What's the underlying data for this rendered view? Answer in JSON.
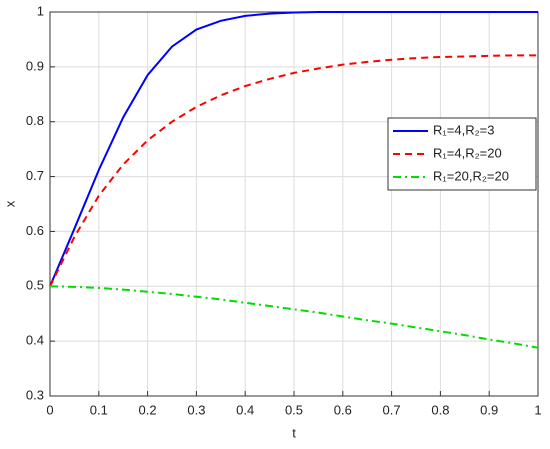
{
  "chart_data": {
    "type": "line",
    "xlabel": "t",
    "ylabel": "x",
    "x": [
      0,
      0.05,
      0.1,
      0.15,
      0.2,
      0.25,
      0.3,
      0.35,
      0.4,
      0.45,
      0.5,
      0.55,
      0.6,
      0.65,
      0.7,
      0.75,
      0.8,
      0.85,
      0.9,
      0.95,
      1
    ],
    "series": [
      {
        "name": "R₁=4,R₂=3",
        "color": "#0000ff",
        "style": "solid",
        "values": [
          0.5,
          0.605,
          0.712,
          0.808,
          0.885,
          0.937,
          0.968,
          0.984,
          0.993,
          0.997,
          0.999,
          1,
          1,
          1,
          1,
          1,
          1,
          1,
          1,
          1,
          1
        ]
      },
      {
        "name": "R₁=4,R₂=20",
        "color": "#ff0000",
        "style": "dashed",
        "values": [
          0.5,
          0.59,
          0.665,
          0.722,
          0.766,
          0.8,
          0.827,
          0.848,
          0.865,
          0.878,
          0.889,
          0.897,
          0.904,
          0.909,
          0.913,
          0.916,
          0.918,
          0.919,
          0.92,
          0.921,
          0.921
        ]
      },
      {
        "name": "R₁=20,R₂=20",
        "color": "#00dd00",
        "style": "dashdot",
        "values": [
          0.5,
          0.499,
          0.497,
          0.494,
          0.49,
          0.486,
          0.481,
          0.476,
          0.47,
          0.464,
          0.458,
          0.452,
          0.445,
          0.438,
          0.432,
          0.425,
          0.418,
          0.411,
          0.403,
          0.396,
          0.388
        ]
      }
    ],
    "xlim": [
      0,
      1
    ],
    "xticks": [
      0,
      0.1,
      0.2,
      0.3,
      0.4,
      0.5,
      0.6,
      0.7,
      0.8,
      0.9,
      1
    ],
    "ylim": [
      0.3,
      1
    ],
    "yticks": [
      0.3,
      0.4,
      0.5,
      0.6,
      0.7,
      0.8,
      0.9,
      1
    ],
    "grid": true,
    "legend": "east"
  }
}
